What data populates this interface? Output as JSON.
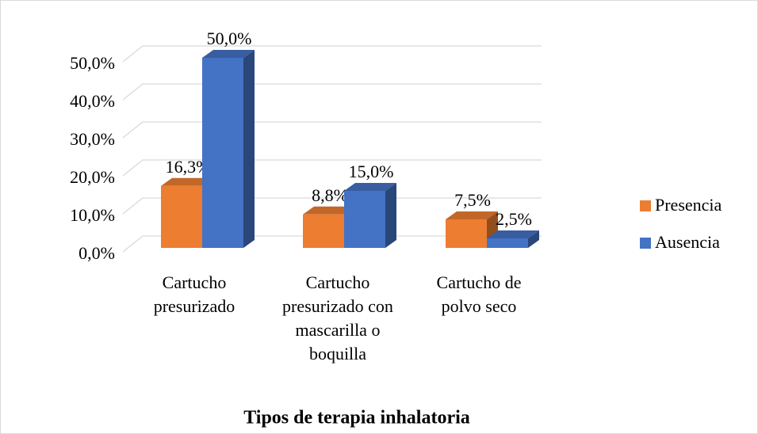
{
  "chart_data": {
    "type": "bar3d",
    "x_label": "Tipos de terapia inhalatoria",
    "categories": [
      "Cartucho presurizado",
      "Cartucho presurizado con mascarilla o boquilla",
      "Cartucho de polvo seco"
    ],
    "series": [
      {
        "name": "Presencia",
        "color": "#ed7d31",
        "values": [
          16.3,
          8.8,
          7.5
        ],
        "value_labels": [
          "16,3%",
          "8,8%",
          "7,5%"
        ]
      },
      {
        "name": "Ausencia",
        "color": "#4472c4",
        "values": [
          50.0,
          15.0,
          2.5
        ],
        "value_labels": [
          "50,0%",
          "15,0%",
          "2,5%"
        ]
      }
    ],
    "ylim": [
      0,
      50
    ],
    "yticks": [
      {
        "value": 0,
        "label": "0,0%"
      },
      {
        "value": 10,
        "label": "10,0%"
      },
      {
        "value": 20,
        "label": "20,0%"
      },
      {
        "value": 30,
        "label": "30,0%"
      },
      {
        "value": 40,
        "label": "40,0%"
      },
      {
        "value": 50,
        "label": "50,0%"
      }
    ],
    "grid": true,
    "legend": "right"
  }
}
